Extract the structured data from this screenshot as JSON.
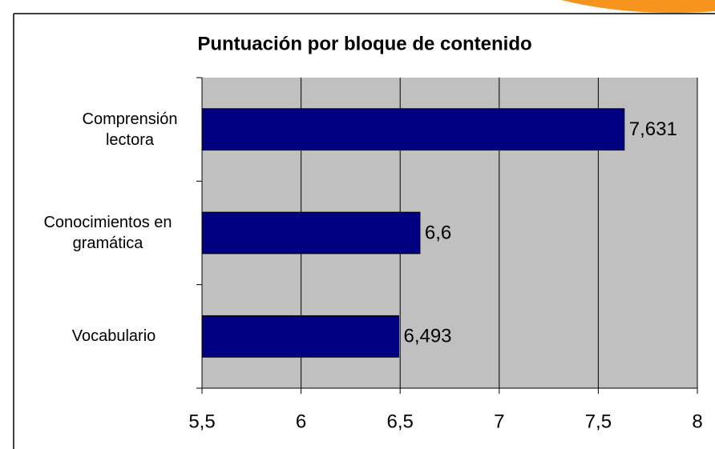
{
  "chart_data": {
    "type": "bar",
    "orientation": "horizontal",
    "title": "Puntuación por bloque de contenido",
    "categories": [
      "Comprensión lectora",
      "Conocimientos en gramática",
      "Vocabulario"
    ],
    "values": [
      7.631,
      6.6,
      6.493
    ],
    "value_labels": [
      "7,631",
      "6,6",
      "6,493"
    ],
    "color": "#000080",
    "xlim": [
      5.5,
      8
    ],
    "xticks": [
      {
        "value": 5.5,
        "label": "5,5"
      },
      6,
      {
        "value": 6.5,
        "label": "6,5"
      },
      7,
      {
        "value": 7.5,
        "label": "7,5"
      },
      8
    ],
    "grid": true
  }
}
